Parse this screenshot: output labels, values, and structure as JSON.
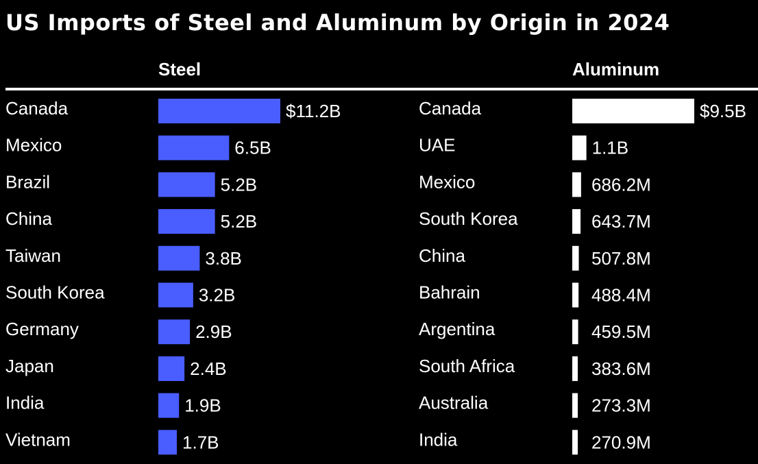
{
  "chart_data": {
    "type": "bar",
    "title": "US Imports of Steel and Aluminum by Origin in 2024",
    "panels": [
      {
        "name": "Steel",
        "color": "#4a5dff",
        "categories": [
          "Canada",
          "Mexico",
          "Brazil",
          "China",
          "Taiwan",
          "South Korea",
          "Germany",
          "Japan",
          "India",
          "Vietnam"
        ],
        "values": [
          11.2,
          6.5,
          5.2,
          5.2,
          3.8,
          3.2,
          2.9,
          2.4,
          1.9,
          1.7
        ],
        "labels": [
          "$11.2B",
          "6.5B",
          "5.2B",
          "5.2B",
          "3.8B",
          "3.2B",
          "2.9B",
          "2.4B",
          "1.9B",
          "1.7B"
        ],
        "unit": "billion USD"
      },
      {
        "name": "Aluminum",
        "color": "#ffffff",
        "categories": [
          "Canada",
          "UAE",
          "Mexico",
          "South Korea",
          "China",
          "Bahrain",
          "Argentina",
          "South Africa",
          "Australia",
          "India"
        ],
        "values": [
          9.5,
          1.1,
          0.6862,
          0.6437,
          0.5078,
          0.4884,
          0.4595,
          0.3836,
          0.2733,
          0.2709
        ],
        "labels": [
          "$9.5B",
          "1.1B",
          "686.2M",
          "643.7M",
          "507.8M",
          "488.4M",
          "459.5M",
          "383.6M",
          "273.3M",
          "270.9M"
        ],
        "unit": "billion USD"
      }
    ]
  }
}
